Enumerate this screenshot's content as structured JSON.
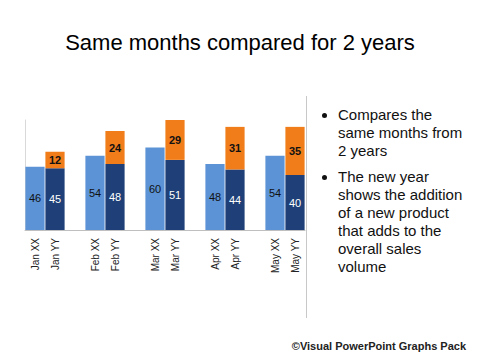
{
  "chart_data": {
    "type": "bar",
    "title": "Same months compared for 2 years",
    "categories": [
      "Jan XX",
      "Jan YY",
      null,
      "Feb XX",
      "Feb YY",
      null,
      "Mar XX",
      "Mar YY",
      null,
      "Apr XX",
      "Apr YY",
      null,
      "May XX",
      "May YY"
    ],
    "series": [
      {
        "color": "#5b93d6",
        "values": [
          46,
          null,
          null,
          54,
          null,
          null,
          60,
          null,
          null,
          48,
          null,
          null,
          54,
          null
        ]
      },
      {
        "color": "#1e3f77",
        "values": [
          null,
          45,
          null,
          null,
          48,
          null,
          null,
          51,
          null,
          null,
          44,
          null,
          null,
          40
        ]
      },
      {
        "color": "#f07d1a",
        "values": [
          null,
          12,
          null,
          null,
          24,
          null,
          null,
          29,
          null,
          null,
          31,
          null,
          null,
          35
        ]
      }
    ],
    "ylim": [
      0,
      80
    ],
    "stacked": true,
    "data_labels": true,
    "tick_labels": "x",
    "grid": false,
    "bullets": [
      "Compares the same months from 2 years",
      "The new year shows the addition of a new product that adds to the overall sales volume"
    ],
    "footer": "©Visual PowerPoint Graphs Pack"
  }
}
